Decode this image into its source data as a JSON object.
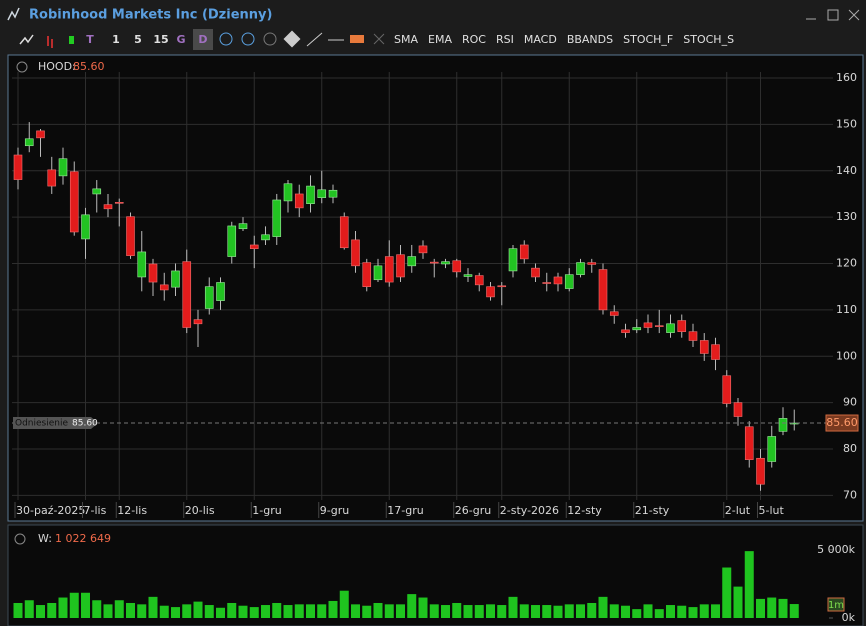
{
  "window": {
    "title": "Robinhood Markets Inc (Dzienny)"
  },
  "toolbar": {
    "buttons": [
      "T",
      "1",
      "5",
      "15",
      "G",
      "D"
    ],
    "indicators": [
      "SMA",
      "EMA",
      "ROC",
      "RSI",
      "MACD",
      "BBANDS",
      "STOCH_F",
      "STOCH_S"
    ]
  },
  "chart_data": [
    {
      "type": "candlestick",
      "symbol": "HOOD:",
      "last_label": "85.60",
      "reference_label": "Odniesienie",
      "categories": [
        "30-paź-2025",
        null,
        null,
        null,
        null,
        null,
        "7-lis",
        null,
        null,
        "12-lis",
        null,
        null,
        null,
        null,
        null,
        "20-lis",
        null,
        null,
        null,
        null,
        null,
        "1-gru",
        null,
        null,
        null,
        null,
        null,
        "9-gru",
        null,
        null,
        null,
        null,
        null,
        "17-gru",
        null,
        null,
        null,
        null,
        null,
        "26-gru",
        null,
        null,
        null,
        "2-sty-2026",
        null,
        null,
        null,
        null,
        null,
        "12-sty",
        null,
        null,
        null,
        null,
        null,
        "21-sty",
        null,
        null,
        null,
        null,
        null,
        null,
        null,
        "2-lut",
        null,
        null,
        "5-lut",
        null,
        null,
        null
      ],
      "series": {
        "open": [
          143.4,
          145.4,
          148.6,
          140.2,
          138.9,
          139.8,
          125.3,
          135,
          132.7,
          133.2,
          130.1,
          117.1,
          119.9,
          115.4,
          114.9,
          120.4,
          107.9,
          110.3,
          112,
          121.5,
          127.5,
          124,
          125.1,
          125.8,
          133.5,
          135,
          132.9,
          134.2,
          134.3,
          130.1,
          125.1,
          120.2,
          116.5,
          121.5,
          121.9,
          119.5,
          123.8,
          120.3,
          119.9,
          120.6,
          117.2,
          117.4,
          115,
          115.2,
          118.4,
          124,
          119,
          115.9,
          117.1,
          114.6,
          117.6,
          120.2,
          118.7,
          109.6,
          105.7,
          105.7,
          107.2,
          106.6,
          105.1,
          107.7,
          105.3,
          103.4,
          102.5,
          95.8,
          90,
          84.8,
          78,
          77.3,
          83.8,
          85.6
        ],
        "high": [
          145,
          150.5,
          149,
          143,
          145,
          142,
          132,
          138,
          135,
          134,
          131,
          127,
          121,
          118,
          120,
          123,
          110,
          117,
          117,
          129,
          130,
          126,
          128,
          135,
          138,
          137,
          139,
          140,
          137,
          131,
          127,
          121,
          121,
          125,
          124,
          124,
          125,
          121,
          121,
          121,
          119,
          118,
          116,
          116,
          124,
          125,
          120,
          118,
          118,
          119,
          121,
          121,
          120,
          111,
          107,
          108,
          109,
          110,
          109,
          109,
          107,
          105,
          104,
          97,
          91,
          86,
          80,
          85,
          89,
          88.5
        ],
        "low": [
          136,
          144,
          143,
          135,
          137,
          126,
          121,
          131,
          130,
          128,
          121,
          114,
          113,
          112,
          113,
          105,
          102,
          109,
          110,
          120,
          127,
          119,
          124,
          124,
          131,
          130,
          131,
          133,
          133,
          123,
          118,
          114,
          116,
          115,
          116,
          118,
          121,
          117,
          119,
          117,
          116,
          114,
          112,
          111,
          117,
          120,
          116,
          114,
          114,
          114,
          117,
          118,
          109,
          107,
          104,
          105,
          105,
          105,
          104,
          104,
          102,
          99,
          97,
          89,
          85,
          76,
          71,
          76,
          83,
          84
        ],
        "close": [
          138.1,
          146.9,
          147.1,
          136.7,
          142.6,
          126.8,
          130.5,
          136.1,
          131.8,
          133,
          121.7,
          122.5,
          116,
          114.3,
          118.4,
          106.2,
          107,
          115,
          115.9,
          128.1,
          128.6,
          123.2,
          126.2,
          133.7,
          137.2,
          132,
          136.7,
          135.9,
          135.8,
          123.4,
          119.5,
          115,
          119.5,
          116,
          117.1,
          121.5,
          122.3,
          120.1,
          120.4,
          118.2,
          117.6,
          115.4,
          112.8,
          115.1,
          123.2,
          121,
          117.1,
          115.7,
          115.6,
          117.6,
          120.2,
          119.8,
          110,
          108.8,
          105.1,
          106.2,
          106.2,
          106.5,
          107,
          105.3,
          103.4,
          100.6,
          99.3,
          89.8,
          87,
          77.7,
          72.4,
          82.7,
          86.6,
          85.6
        ]
      },
      "up_color": "#22c322",
      "down_color": "#e31c1c",
      "ylim": [
        69,
        161.3
      ],
      "yticks": [
        70,
        80,
        90,
        100,
        110,
        120,
        130,
        140,
        150,
        160
      ],
      "grid": true
    },
    {
      "type": "bar",
      "label": "W:",
      "value_label": "1 022 649",
      "interval_label": "1m",
      "values": [
        1100000,
        1300000,
        950000,
        1100000,
        1500000,
        1850000,
        1850000,
        1300000,
        1000000,
        1300000,
        1100000,
        1000000,
        1550000,
        900000,
        800000,
        1000000,
        1200000,
        950000,
        750000,
        1100000,
        900000,
        800000,
        950000,
        1100000,
        950000,
        1000000,
        1000000,
        1000000,
        1250000,
        2000000,
        1000000,
        900000,
        1100000,
        1000000,
        1000000,
        1750000,
        1500000,
        1000000,
        950000,
        1100000,
        950000,
        950000,
        1000000,
        950000,
        1550000,
        1000000,
        950000,
        950000,
        900000,
        1000000,
        1000000,
        1100000,
        1550000,
        1000000,
        900000,
        650000,
        1000000,
        650000,
        950000,
        900000,
        800000,
        1000000,
        1000000,
        3700000,
        2300000,
        4900000,
        1400000,
        1500000,
        1400000,
        1022649
      ],
      "color": "#1fc41f",
      "ylim": [
        0,
        5350000
      ],
      "yticks": [
        {
          "value": 0,
          "label": "0k"
        },
        {
          "value": 5000000,
          "label": "5 000k"
        }
      ]
    }
  ]
}
